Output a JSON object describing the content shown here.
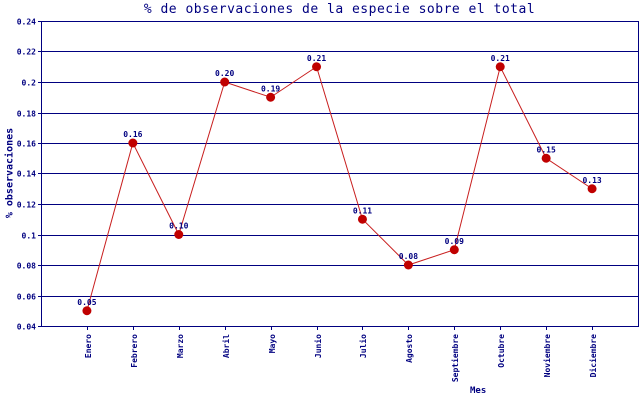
{
  "chart_data": {
    "type": "line",
    "title": "% de observaciones de la especie sobre el total",
    "xlabel": "Mes",
    "ylabel": "% observaciones",
    "categories": [
      "Enero",
      "Febrero",
      "Marzo",
      "Abril",
      "Mayo",
      "Junio",
      "Julio",
      "Agosto",
      "Septiembre",
      "Octubre",
      "Noviembre",
      "Diciembre"
    ],
    "values": [
      0.05,
      0.16,
      0.1,
      0.2,
      0.19,
      0.21,
      0.11,
      0.08,
      0.09,
      0.21,
      0.15,
      0.13
    ],
    "point_labels": [
      "0.05",
      "0.16",
      "0.10",
      "0.20",
      "0.19",
      "0.21",
      "0.11",
      "0.08",
      "0.09",
      "0.21",
      "0.15",
      "0.13"
    ],
    "ylim": [
      0.04,
      0.24
    ],
    "ytick_labels": [
      "0.24",
      "0.22",
      "0.2",
      "0.18",
      "0.16",
      "0.14",
      "0.12",
      "0.1",
      "0.08",
      "0.06",
      "0.04"
    ],
    "grid": true,
    "legend": "none",
    "colors": {
      "line": "#c81e1e",
      "marker": "#c00000",
      "axis": "#000080",
      "grid": "#000080",
      "text": "#000080",
      "background": "#ffffff"
    }
  }
}
